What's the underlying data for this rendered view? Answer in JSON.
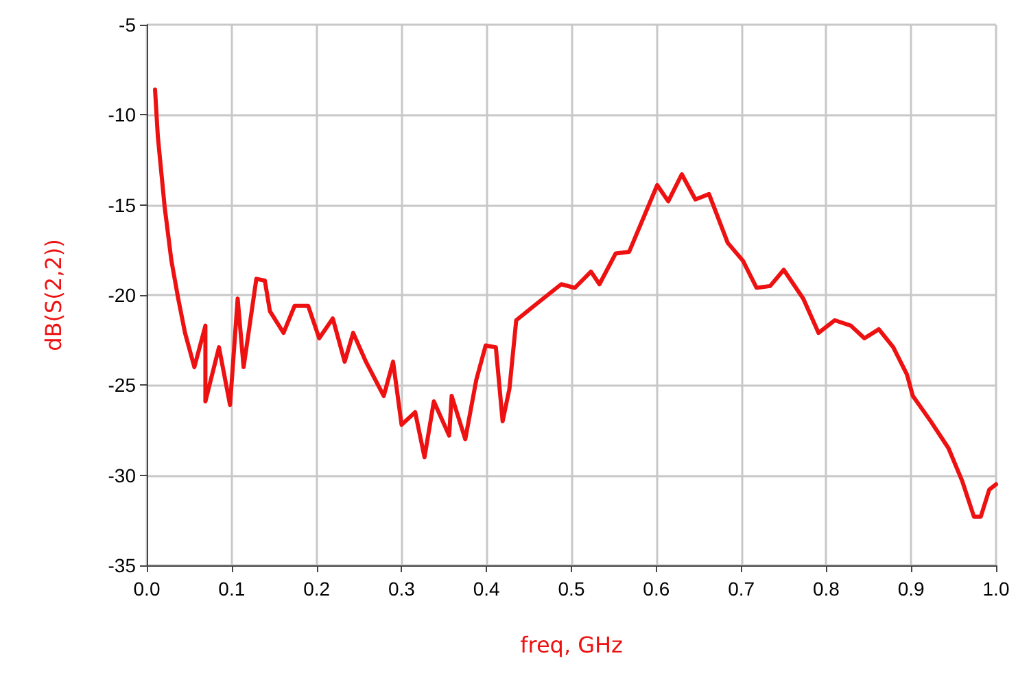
{
  "chart_data": {
    "type": "line",
    "xlabel": "freq, GHz",
    "ylabel": "dB(S(2,2))",
    "grid": true,
    "marker": "none",
    "line_style": "solid",
    "xlim": [
      0,
      1
    ],
    "xticks": [
      {
        "value": 0,
        "label": "0.0"
      },
      0.1,
      0.2,
      0.3,
      0.4,
      0.5,
      0.6,
      0.7,
      0.8,
      0.9,
      {
        "value": 1,
        "label": "1.0"
      }
    ],
    "ylim": [
      -35,
      -5
    ],
    "yticks": [
      -35,
      -30,
      -25,
      -20,
      -15,
      -10,
      -5
    ],
    "series": [
      {
        "color": "#ee1111",
        "x": [
          0.0097,
          0.013,
          0.021,
          0.029,
          0.037,
          0.045,
          0.056,
          0.069,
          0.069,
          0.085,
          0.098,
          0.107,
          0.114,
          0.129,
          0.139,
          0.145,
          0.161,
          0.174,
          0.19,
          0.203,
          0.219,
          0.233,
          0.243,
          0.258,
          0.279,
          0.29,
          0.3,
          0.316,
          0.327,
          0.338,
          0.356,
          0.359,
          0.375,
          0.388,
          0.399,
          0.411,
          0.419,
          0.427,
          0.435,
          0.456,
          0.488,
          0.504,
          0.523,
          0.533,
          0.552,
          0.568,
          0.601,
          0.614,
          0.63,
          0.646,
          0.662,
          0.684,
          0.702,
          0.718,
          0.734,
          0.75,
          0.773,
          0.791,
          0.81,
          0.829,
          0.845,
          0.862,
          0.879,
          0.895,
          0.902,
          0.923,
          0.944,
          0.96,
          0.974,
          0.982,
          0.992,
          1.0
        ],
        "values": [
          -8.6,
          -11.2,
          -15.1,
          -18.1,
          -20.2,
          -22.1,
          -24.0,
          -21.7,
          -25.9,
          -22.9,
          -26.1,
          -20.2,
          -24.0,
          -19.1,
          -19.2,
          -20.9,
          -22.1,
          -20.6,
          -20.6,
          -22.4,
          -21.3,
          -23.7,
          -22.1,
          -23.7,
          -25.6,
          -23.7,
          -27.2,
          -26.5,
          -29.0,
          -25.9,
          -27.8,
          -25.6,
          -28.0,
          -24.7,
          -22.8,
          -22.9,
          -27.0,
          -25.2,
          -21.4,
          -20.6,
          -19.4,
          -19.6,
          -18.7,
          -19.4,
          -17.7,
          -17.6,
          -13.9,
          -14.8,
          -13.3,
          -14.7,
          -14.4,
          -17.1,
          -18.1,
          -19.6,
          -19.5,
          -18.6,
          -20.2,
          -22.1,
          -21.4,
          -21.7,
          -22.4,
          -21.9,
          -22.9,
          -24.4,
          -25.6,
          -27.0,
          -28.5,
          -30.3,
          -32.3,
          -32.3,
          -30.8,
          -30.5
        ]
      }
    ]
  }
}
